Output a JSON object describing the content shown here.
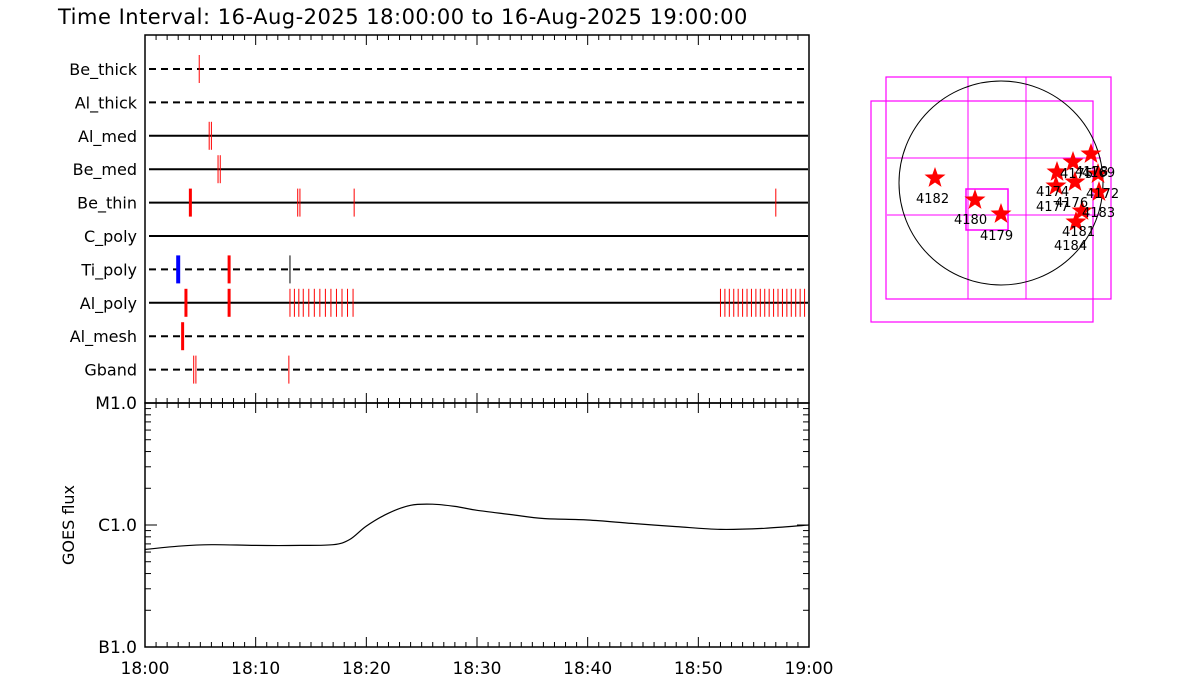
{
  "chart_data": [
    {
      "type": "timeline",
      "title": "Time Interval: 16-Aug-2025 18:00:00 to 16-Aug-2025 19:00:00",
      "x_range_minutes": [
        0,
        60
      ],
      "tick_labels": [
        "18:00",
        "18:10",
        "18:20",
        "18:30",
        "18:40",
        "18:50",
        "19:00"
      ],
      "tick_minutes": [
        0,
        10,
        20,
        30,
        40,
        50,
        60
      ],
      "colors": {
        "red": "#ff0000",
        "blue": "#0000ff",
        "black": "#000000"
      },
      "rows": [
        {
          "name": "Be_thick",
          "line_style": "dashed",
          "events": [
            {
              "t": 4.9,
              "color": "red",
              "weight": "thin"
            }
          ]
        },
        {
          "name": "Al_thick",
          "line_style": "dashed",
          "events": []
        },
        {
          "name": "Al_med",
          "line_style": "solid",
          "events": [
            {
              "t": 5.8,
              "color": "red",
              "weight": "thin"
            },
            {
              "t": 6.0,
              "color": "red",
              "weight": "thin"
            }
          ]
        },
        {
          "name": "Be_med",
          "line_style": "solid",
          "events": [
            {
              "t": 6.6,
              "color": "red",
              "weight": "thin"
            },
            {
              "t": 6.8,
              "color": "red",
              "weight": "thin"
            }
          ]
        },
        {
          "name": "Be_thin",
          "line_style": "solid",
          "events": [
            {
              "t": 4.1,
              "color": "red",
              "weight": "thick"
            },
            {
              "t": 13.8,
              "color": "red",
              "weight": "thin"
            },
            {
              "t": 14.0,
              "color": "red",
              "weight": "thin"
            },
            {
              "t": 18.9,
              "color": "red",
              "weight": "thin"
            },
            {
              "t": 57.0,
              "color": "red",
              "weight": "thin"
            }
          ]
        },
        {
          "name": "C_poly",
          "line_style": "solid",
          "events": []
        },
        {
          "name": "Ti_poly",
          "line_style": "dashed",
          "events": [
            {
              "t": 3.0,
              "color": "blue",
              "weight": "thick"
            },
            {
              "t": 7.6,
              "color": "red",
              "weight": "thick"
            },
            {
              "t": 13.1,
              "color": "black",
              "weight": "thin"
            }
          ]
        },
        {
          "name": "Al_poly",
          "line_style": "solid",
          "events": [
            {
              "t": 3.7,
              "color": "red",
              "weight": "thick"
            },
            {
              "t": 7.6,
              "color": "red",
              "weight": "thick"
            },
            {
              "t": 13.1,
              "color": "red",
              "weight": "thin"
            },
            {
              "t": 13.5,
              "color": "red",
              "weight": "thin"
            },
            {
              "t": 13.9,
              "color": "red",
              "weight": "thin"
            },
            {
              "t": 14.3,
              "color": "red",
              "weight": "thin"
            },
            {
              "t": 14.8,
              "color": "red",
              "weight": "thin"
            },
            {
              "t": 15.3,
              "color": "red",
              "weight": "thin"
            },
            {
              "t": 15.8,
              "color": "red",
              "weight": "thin"
            },
            {
              "t": 16.3,
              "color": "red",
              "weight": "thin"
            },
            {
              "t": 16.8,
              "color": "red",
              "weight": "thin"
            },
            {
              "t": 17.3,
              "color": "red",
              "weight": "thin"
            },
            {
              "t": 17.8,
              "color": "red",
              "weight": "thin"
            },
            {
              "t": 18.3,
              "color": "red",
              "weight": "thin"
            },
            {
              "t": 18.8,
              "color": "red",
              "weight": "thin"
            },
            {
              "t": 52.0,
              "color": "red",
              "weight": "thin"
            },
            {
              "t": 52.4,
              "color": "red",
              "weight": "thin"
            },
            {
              "t": 52.8,
              "color": "red",
              "weight": "thin"
            },
            {
              "t": 53.2,
              "color": "red",
              "weight": "thin"
            },
            {
              "t": 53.6,
              "color": "red",
              "weight": "thin"
            },
            {
              "t": 54.0,
              "color": "red",
              "weight": "thin"
            },
            {
              "t": 54.4,
              "color": "red",
              "weight": "thin"
            },
            {
              "t": 54.8,
              "color": "red",
              "weight": "thin"
            },
            {
              "t": 55.2,
              "color": "red",
              "weight": "thin"
            },
            {
              "t": 55.6,
              "color": "red",
              "weight": "thin"
            },
            {
              "t": 56.0,
              "color": "red",
              "weight": "thin"
            },
            {
              "t": 56.4,
              "color": "red",
              "weight": "thin"
            },
            {
              "t": 56.8,
              "color": "red",
              "weight": "thin"
            },
            {
              "t": 57.2,
              "color": "red",
              "weight": "thin"
            },
            {
              "t": 57.6,
              "color": "red",
              "weight": "thin"
            },
            {
              "t": 58.0,
              "color": "red",
              "weight": "thin"
            },
            {
              "t": 58.4,
              "color": "red",
              "weight": "thin"
            },
            {
              "t": 58.8,
              "color": "red",
              "weight": "thin"
            },
            {
              "t": 59.2,
              "color": "red",
              "weight": "thin"
            },
            {
              "t": 59.6,
              "color": "red",
              "weight": "thin"
            }
          ]
        },
        {
          "name": "Al_mesh",
          "line_style": "dashed",
          "events": [
            {
              "t": 3.4,
              "color": "red",
              "weight": "thick"
            }
          ]
        },
        {
          "name": "Gband",
          "line_style": "dashed",
          "events": [
            {
              "t": 4.4,
              "color": "red",
              "weight": "thin"
            },
            {
              "t": 4.6,
              "color": "red",
              "weight": "thin"
            },
            {
              "t": 13.0,
              "color": "red",
              "weight": "thin"
            }
          ]
        }
      ]
    },
    {
      "type": "line",
      "ylabel": "GOES flux",
      "yscale": "log",
      "ytick_labels": [
        "B1.0",
        "C1.0",
        "M1.0"
      ],
      "ytick_values": [
        1e-07,
        1e-06,
        1e-05
      ],
      "ylim": [
        1e-07,
        1e-05
      ],
      "x_range_minutes": [
        0,
        60
      ],
      "series": [
        {
          "values_x_minutes": [
            0,
            3,
            6,
            10,
            14,
            17,
            18.5,
            20,
            22,
            24,
            26,
            28,
            30,
            33,
            36,
            40,
            44,
            48,
            52,
            56,
            60
          ],
          "values_y": [
            6.3e-07,
            6.7e-07,
            6.9e-07,
            6.8e-07,
            6.8e-07,
            6.9e-07,
            7.6e-07,
            9.8e-07,
            1.25e-06,
            1.45e-06,
            1.48e-06,
            1.42e-06,
            1.32e-06,
            1.22e-06,
            1.13e-06,
            1.1e-06,
            1.03e-06,
            9.7e-07,
            9.2e-07,
            9.4e-07,
            1e-06
          ]
        }
      ]
    }
  ],
  "sun_map": {
    "active_regions": [
      {
        "label": "4182"
      },
      {
        "label": "4180"
      },
      {
        "label": "4179"
      },
      {
        "label": "4174"
      },
      {
        "label": "4177"
      },
      {
        "label": "4176"
      },
      {
        "label": "4175"
      },
      {
        "label": "4178"
      },
      {
        "label": "4169"
      },
      {
        "label": "4172"
      },
      {
        "label": "4183"
      },
      {
        "label": "4181"
      },
      {
        "label": "4184"
      }
    ],
    "colors": {
      "grid": "#ff00ff",
      "star": "#ff0000",
      "limb": "#000000"
    }
  }
}
